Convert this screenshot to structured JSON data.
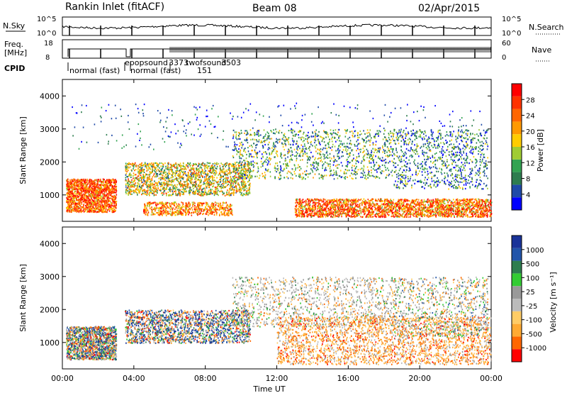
{
  "header": {
    "station": "Rankin Inlet (fitACF)",
    "beam": "Beam 08",
    "date": "02/Apr/2015"
  },
  "noise_panel": {
    "label_left": "N.Sky",
    "label_right": "N.Search",
    "right_ticks": [
      "10^5",
      "10^0"
    ],
    "left_ticks": [
      "10^5",
      "10^0"
    ]
  },
  "freq_panel": {
    "label_left_1": "Freq.",
    "label_left_2": "[MHz]",
    "left_ticks": [
      "18",
      "8"
    ],
    "right_label": "Nave",
    "right_ticks": [
      "60",
      "0"
    ]
  },
  "cpid": {
    "label": "CPID",
    "entries": [
      "normal (fast)",
      "epopsound",
      "3373",
      "normal (fast)",
      "151",
      "twofsound",
      "3503"
    ]
  },
  "colors": {
    "power_bar": [
      "#0000ff",
      "#1f4aa8",
      "#2e7d4f",
      "#33a352",
      "#a0cc33",
      "#ffcc00",
      "#ff9900",
      "#ff6600",
      "#ff3300",
      "#ff0000"
    ],
    "velocity_bar": [
      "#ff0000",
      "#ff6600",
      "#ffaa33",
      "#ffcc66",
      "#bbbbbb",
      "#999999",
      "#33cc33",
      "#2e7d4f",
      "#2255aa",
      "#1a3399"
    ]
  },
  "chart_data": [
    {
      "type": "heatmap",
      "title": "",
      "xlabel": "Time UT",
      "ylabel": "Slant Range [km]",
      "x_ticks": [
        "00:00",
        "04:00",
        "08:00",
        "12:00",
        "16:00",
        "20:00",
        "00:00"
      ],
      "y_ticks": [
        1000,
        2000,
        3000,
        4000
      ],
      "xlim_hours": [
        0,
        24
      ],
      "ylim_km": [
        200,
        4500
      ],
      "colorbar_label": "Power [dB]",
      "colorbar_ticks": [
        4,
        8,
        12,
        16,
        20,
        24,
        28
      ],
      "colorbar_range": [
        0,
        30
      ]
    },
    {
      "type": "heatmap",
      "title": "",
      "xlabel": "Time UT",
      "ylabel": "Slant Range [km]",
      "x_ticks": [
        "00:00",
        "04:00",
        "08:00",
        "12:00",
        "16:00",
        "20:00",
        "00:00"
      ],
      "y_ticks": [
        1000,
        2000,
        3000,
        4000
      ],
      "xlim_hours": [
        0,
        24
      ],
      "ylim_km": [
        200,
        4500
      ],
      "colorbar_label": "Velocity [m s⁻¹]",
      "colorbar_ticks": [
        "1000",
        "500",
        "100",
        "25",
        "-25",
        "-100",
        "-500",
        "-1000"
      ],
      "colorbar_range": [
        -1000,
        1000
      ]
    }
  ]
}
